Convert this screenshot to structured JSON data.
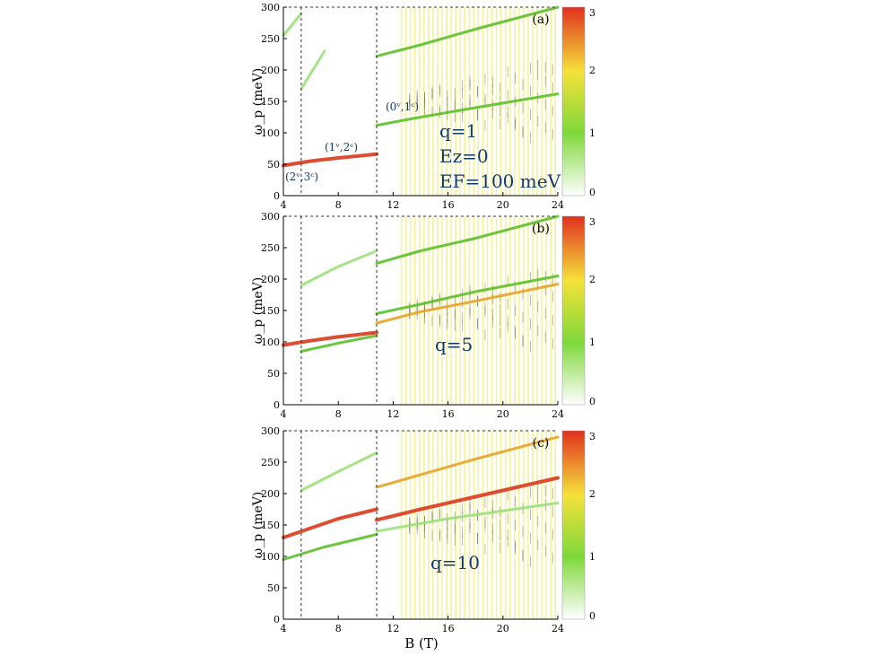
{
  "figure": {
    "xlabel": "B (T)",
    "colorbar_ticks": [
      "0",
      "1",
      "2",
      "3"
    ],
    "colors": {
      "low": "#ffffff",
      "mid": "#7fd83a",
      "high_mid": "#f5e23a",
      "peak": "#e0301e"
    }
  },
  "chart_data": [
    {
      "type": "heatmap",
      "panel": "(a)",
      "xlabel": "",
      "ylabel": "ω_p (meV)",
      "xlim": [
        4,
        24
      ],
      "ylim": [
        0,
        300
      ],
      "xticks": [
        4,
        8,
        12,
        16,
        20,
        24
      ],
      "yticks": [
        0,
        50,
        100,
        150,
        200,
        250,
        300
      ],
      "colorbar": {
        "min": 0,
        "max": 3
      },
      "vlines": [
        5.3,
        10.8
      ],
      "annotations": [
        "(2ᵛ,3ᶜ)",
        "(1ᵛ,2ᶜ)",
        "(0ᵛ,1ᶜ)",
        "q=1",
        "Ez=0",
        "EF=100 meV"
      ],
      "series": [
        {
          "x": [
            4,
            6,
            8,
            10.8
          ],
          "y": [
            48,
            55,
            60,
            66
          ],
          "intensity": 3
        },
        {
          "x": [
            10.8,
            14,
            18,
            24
          ],
          "y": [
            112,
            125,
            140,
            162
          ],
          "intensity": 1.3
        },
        {
          "x": [
            10.8,
            14,
            18,
            24
          ],
          "y": [
            222,
            240,
            265,
            300
          ],
          "intensity": 1.2
        },
        {
          "x": [
            5.3,
            6,
            7
          ],
          "y": [
            170,
            195,
            230
          ],
          "intensity": 1
        },
        {
          "x": [
            4,
            5.3
          ],
          "y": [
            255,
            290
          ],
          "intensity": 0.8
        }
      ]
    },
    {
      "type": "heatmap",
      "panel": "(b)",
      "xlabel": "",
      "ylabel": "ω_p (meV)",
      "xlim": [
        4,
        24
      ],
      "ylim": [
        0,
        300
      ],
      "xticks": [
        4,
        8,
        12,
        16,
        20,
        24
      ],
      "yticks": [
        0,
        50,
        100,
        150,
        200,
        250,
        300
      ],
      "colorbar": {
        "min": 0,
        "max": 3
      },
      "vlines": [
        5.3,
        10.8
      ],
      "annotations": [
        "q=5"
      ],
      "series": [
        {
          "x": [
            4,
            6,
            8,
            10.8
          ],
          "y": [
            95,
            102,
            108,
            115
          ],
          "intensity": 3
        },
        {
          "x": [
            5.3,
            8,
            10.8
          ],
          "y": [
            85,
            98,
            110
          ],
          "intensity": 1.8
        },
        {
          "x": [
            10.8,
            14,
            18,
            24
          ],
          "y": [
            130,
            148,
            165,
            192
          ],
          "intensity": 2.5
        },
        {
          "x": [
            10.8,
            14,
            18,
            24
          ],
          "y": [
            145,
            160,
            180,
            205
          ],
          "intensity": 1.3
        },
        {
          "x": [
            10.8,
            14,
            18,
            24
          ],
          "y": [
            225,
            245,
            265,
            300
          ],
          "intensity": 1.2
        },
        {
          "x": [
            5.3,
            8,
            10.8
          ],
          "y": [
            190,
            220,
            245
          ],
          "intensity": 1
        }
      ]
    },
    {
      "type": "heatmap",
      "panel": "(c)",
      "xlabel": "B (T)",
      "ylabel": "ω_p (meV)",
      "xlim": [
        4,
        24
      ],
      "ylim": [
        0,
        300
      ],
      "xticks": [
        4,
        8,
        12,
        16,
        20,
        24
      ],
      "yticks": [
        0,
        50,
        100,
        150,
        200,
        250,
        300
      ],
      "colorbar": {
        "min": 0,
        "max": 3
      },
      "vlines": [
        5.3,
        10.8
      ],
      "annotations": [
        "q=10"
      ],
      "series": [
        {
          "x": [
            4,
            6,
            8,
            10.8
          ],
          "y": [
            130,
            145,
            160,
            175
          ],
          "intensity": 3
        },
        {
          "x": [
            10.8,
            14,
            18,
            24
          ],
          "y": [
            158,
            175,
            195,
            225
          ],
          "intensity": 2.6
        },
        {
          "x": [
            10.8,
            14,
            18,
            24
          ],
          "y": [
            210,
            230,
            255,
            290
          ],
          "intensity": 2
        },
        {
          "x": [
            4,
            7,
            10.8
          ],
          "y": [
            95,
            115,
            135
          ],
          "intensity": 1.2
        },
        {
          "x": [
            5.3,
            8,
            10.8
          ],
          "y": [
            205,
            235,
            265
          ],
          "intensity": 1
        },
        {
          "x": [
            10.8,
            16,
            24
          ],
          "y": [
            140,
            160,
            185
          ],
          "intensity": 1
        }
      ]
    }
  ]
}
